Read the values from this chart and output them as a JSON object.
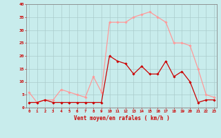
{
  "hours": [
    0,
    1,
    2,
    3,
    4,
    5,
    6,
    7,
    8,
    9,
    10,
    11,
    12,
    13,
    14,
    15,
    16,
    17,
    18,
    19,
    20,
    21,
    22,
    23
  ],
  "wind_avg": [
    2,
    2,
    3,
    2,
    2,
    2,
    2,
    2,
    2,
    2,
    20,
    18,
    17,
    13,
    16,
    13,
    13,
    18,
    12,
    14,
    10,
    2,
    3,
    3
  ],
  "wind_gust": [
    6,
    2,
    3,
    3,
    7,
    6,
    5,
    4,
    12,
    6,
    33,
    33,
    33,
    35,
    36,
    37,
    35,
    33,
    25,
    25,
    24,
    15,
    5,
    4
  ],
  "line_avg_color": "#cc0000",
  "line_gust_color": "#ff9999",
  "bg_color": "#c8ecec",
  "grid_color": "#aacccc",
  "xlabel": "Vent moyen/en rafales ( km/h )",
  "xlabel_color": "#cc0000",
  "tick_color": "#cc0000",
  "spine_color": "#888888",
  "ylim": [
    0,
    40
  ],
  "yticks": [
    0,
    5,
    10,
    15,
    20,
    25,
    30,
    35,
    40
  ]
}
